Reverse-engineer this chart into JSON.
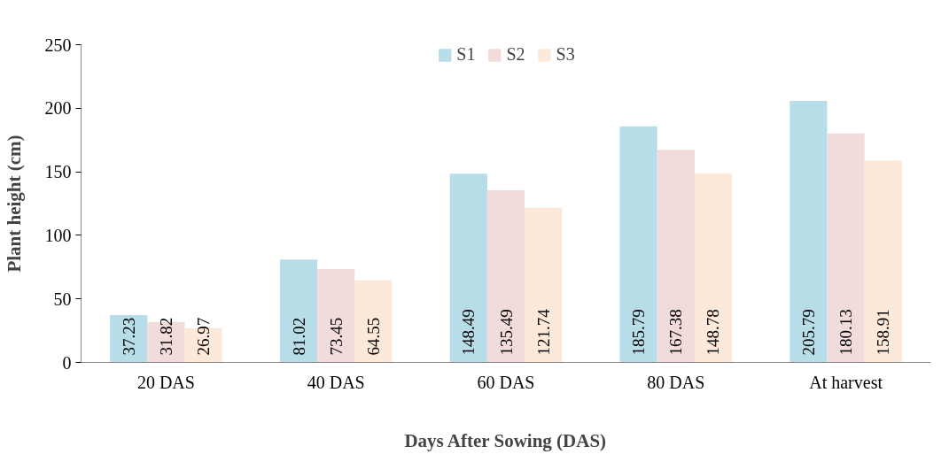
{
  "chart_data": {
    "type": "bar",
    "xlabel": "Days After Sowing (DAS)",
    "ylabel": "Plant height (cm)",
    "categories": [
      "20 DAS",
      "40 DAS",
      "60 DAS",
      "80 DAS",
      "At harvest"
    ],
    "series": [
      {
        "name": "S1",
        "color": "#b7dde8",
        "values": [
          37.23,
          81.02,
          148.49,
          185.79,
          205.79
        ]
      },
      {
        "name": "S2",
        "color": "#f2dcdb",
        "values": [
          31.82,
          73.45,
          135.49,
          167.38,
          180.13
        ]
      },
      {
        "name": "S3",
        "color": "#fde9d9",
        "values": [
          26.97,
          64.55,
          121.74,
          148.78,
          158.91
        ]
      }
    ],
    "ylim": [
      0,
      250
    ],
    "yticks": [
      0,
      50,
      100,
      150,
      200,
      250
    ],
    "grid": false,
    "legend": "top",
    "data_labels": true
  }
}
